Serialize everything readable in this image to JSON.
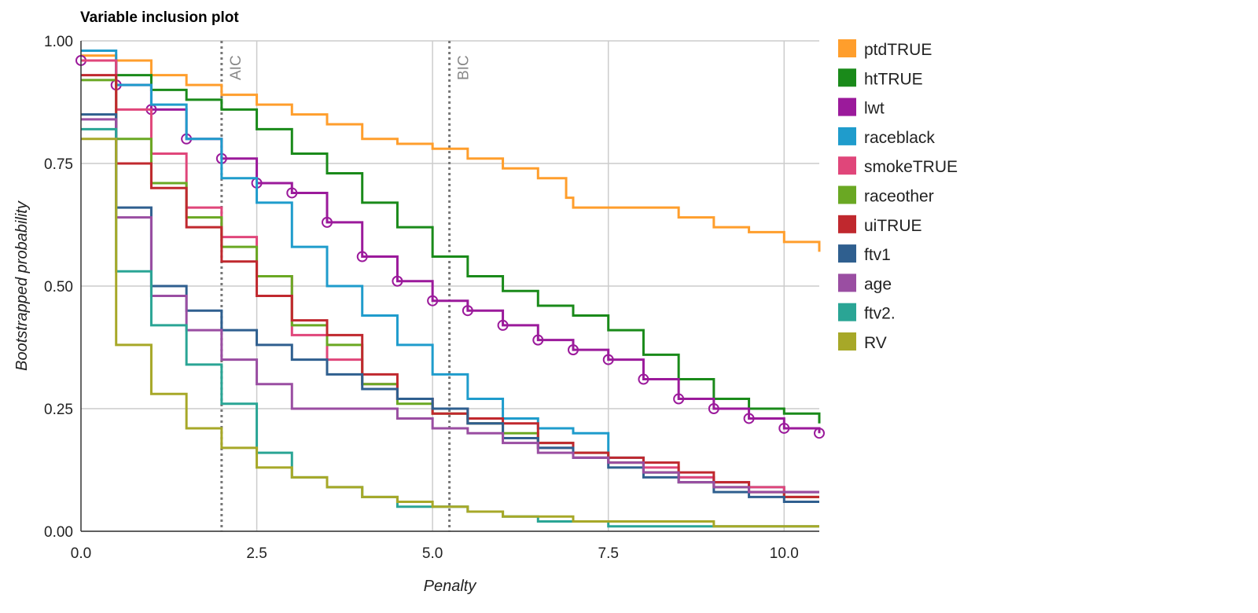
{
  "chart_data": {
    "type": "line",
    "title": "Variable inclusion plot",
    "xlabel": "Penalty",
    "ylabel": "Bootstrapped probability",
    "xlim": [
      0,
      10.5
    ],
    "ylim": [
      0,
      1
    ],
    "xticks": [
      "0.0",
      "2.5",
      "5.0",
      "7.5",
      "10.0"
    ],
    "xtick_values": [
      0,
      2.5,
      5,
      7.5,
      10
    ],
    "yticks": [
      "0.00",
      "0.25",
      "0.50",
      "0.75",
      "1.00"
    ],
    "ytick_values": [
      0,
      0.25,
      0.5,
      0.75,
      1
    ],
    "grid": true,
    "legend_position": "right",
    "step": true,
    "vlines": [
      {
        "label": "AIC",
        "x": 2
      },
      {
        "label": "BIC",
        "x": 5.24
      }
    ],
    "series": [
      {
        "name": "ptdTRUE",
        "color": "#ff9e2c",
        "x": [
          0,
          0.5,
          1.0,
          1.5,
          2.0,
          2.5,
          3.0,
          3.5,
          4.0,
          4.5,
          5.0,
          5.5,
          6.0,
          6.5,
          6.9,
          7.0,
          7.5,
          8.0,
          8.5,
          9.0,
          9.5,
          10.0,
          10.5
        ],
        "y": [
          0.97,
          0.96,
          0.93,
          0.91,
          0.89,
          0.87,
          0.85,
          0.83,
          0.8,
          0.79,
          0.78,
          0.76,
          0.74,
          0.72,
          0.68,
          0.66,
          0.66,
          0.66,
          0.64,
          0.62,
          0.61,
          0.59,
          0.57
        ]
      },
      {
        "name": "htTRUE",
        "color": "#1a8a1a",
        "x": [
          0,
          0.5,
          1.0,
          1.5,
          2.0,
          2.5,
          3.0,
          3.5,
          4.0,
          4.5,
          5.0,
          5.5,
          6.0,
          6.5,
          7.0,
          7.5,
          8.0,
          8.5,
          9.0,
          9.5,
          10.0,
          10.5
        ],
        "y": [
          0.96,
          0.93,
          0.9,
          0.88,
          0.86,
          0.82,
          0.77,
          0.73,
          0.67,
          0.62,
          0.56,
          0.52,
          0.49,
          0.46,
          0.44,
          0.41,
          0.36,
          0.31,
          0.27,
          0.25,
          0.24,
          0.22
        ]
      },
      {
        "name": "lwt",
        "color": "#9b1a9b",
        "marker": "circle",
        "x": [
          0,
          0.5,
          1.0,
          1.5,
          2.0,
          2.5,
          3.0,
          3.5,
          4.0,
          4.5,
          5.0,
          5.5,
          6.0,
          6.5,
          7.0,
          7.5,
          8.0,
          8.5,
          9.0,
          9.5,
          10.0,
          10.5
        ],
        "y": [
          0.96,
          0.91,
          0.86,
          0.8,
          0.76,
          0.71,
          0.69,
          0.63,
          0.56,
          0.51,
          0.47,
          0.45,
          0.42,
          0.39,
          0.37,
          0.35,
          0.31,
          0.27,
          0.25,
          0.23,
          0.21,
          0.2
        ]
      },
      {
        "name": "raceblack",
        "color": "#1f9ccc",
        "x": [
          0,
          0.5,
          1.0,
          1.5,
          2.0,
          2.5,
          3.0,
          3.5,
          4.0,
          4.5,
          5.0,
          5.5,
          6.0,
          6.5,
          7.0,
          7.5,
          8.0,
          8.5,
          9.0,
          9.5,
          10.0,
          10.5
        ],
        "y": [
          0.98,
          0.91,
          0.87,
          0.8,
          0.72,
          0.67,
          0.58,
          0.5,
          0.44,
          0.38,
          0.32,
          0.27,
          0.23,
          0.21,
          0.2,
          0.15,
          0.12,
          0.11,
          0.1,
          0.09,
          0.08,
          0.08
        ]
      },
      {
        "name": "smokeTRUE",
        "color": "#e0467a",
        "x": [
          0,
          0.5,
          1.0,
          1.5,
          2.0,
          2.5,
          3.0,
          3.5,
          4.0,
          4.5,
          5.0,
          5.5,
          6.0,
          6.5,
          7.0,
          7.5,
          8.0,
          8.5,
          9.0,
          9.5,
          10.0,
          10.5
        ],
        "y": [
          0.96,
          0.86,
          0.77,
          0.66,
          0.6,
          0.52,
          0.4,
          0.35,
          0.3,
          0.27,
          0.25,
          0.22,
          0.19,
          0.17,
          0.15,
          0.14,
          0.13,
          0.11,
          0.1,
          0.09,
          0.08,
          0.08
        ]
      },
      {
        "name": "raceother",
        "color": "#6aa823",
        "x": [
          0,
          0.5,
          1.0,
          1.5,
          2.0,
          2.5,
          3.0,
          3.5,
          4.0,
          4.5,
          5.0,
          5.5,
          6.0,
          6.5,
          7.0,
          7.5,
          8.0,
          8.5,
          9.0,
          9.5,
          10.0,
          10.5
        ],
        "y": [
          0.92,
          0.8,
          0.71,
          0.64,
          0.58,
          0.52,
          0.42,
          0.38,
          0.3,
          0.26,
          0.24,
          0.22,
          0.2,
          0.18,
          0.16,
          0.14,
          0.12,
          0.1,
          0.09,
          0.08,
          0.07,
          0.07
        ]
      },
      {
        "name": "uiTRUE",
        "color": "#c0282e",
        "x": [
          0,
          0.5,
          1.0,
          1.5,
          2.0,
          2.5,
          3.0,
          3.5,
          4.0,
          4.5,
          5.0,
          5.5,
          6.0,
          6.5,
          7.0,
          7.5,
          8.0,
          8.5,
          9.0,
          9.5,
          10.0,
          10.5
        ],
        "y": [
          0.93,
          0.75,
          0.7,
          0.62,
          0.55,
          0.48,
          0.43,
          0.4,
          0.32,
          0.27,
          0.24,
          0.23,
          0.22,
          0.18,
          0.16,
          0.15,
          0.14,
          0.12,
          0.1,
          0.08,
          0.07,
          0.07
        ]
      },
      {
        "name": "ftv1",
        "color": "#2f5f8f",
        "x": [
          0,
          0.5,
          1.0,
          1.5,
          2.0,
          2.5,
          3.0,
          3.5,
          4.0,
          4.5,
          5.0,
          5.5,
          6.0,
          6.5,
          7.0,
          7.5,
          8.0,
          8.5,
          9.0,
          9.5,
          10.0,
          10.5
        ],
        "y": [
          0.85,
          0.66,
          0.5,
          0.45,
          0.41,
          0.38,
          0.35,
          0.32,
          0.29,
          0.27,
          0.25,
          0.22,
          0.19,
          0.17,
          0.15,
          0.13,
          0.11,
          0.1,
          0.08,
          0.07,
          0.06,
          0.06
        ]
      },
      {
        "name": "age",
        "color": "#9a4ea2",
        "x": [
          0,
          0.5,
          1.0,
          1.5,
          2.0,
          2.5,
          3.0,
          3.5,
          4.0,
          4.5,
          5.0,
          5.5,
          6.0,
          6.5,
          7.0,
          7.5,
          8.0,
          8.5,
          9.0,
          9.5,
          10.0,
          10.5
        ],
        "y": [
          0.84,
          0.64,
          0.48,
          0.41,
          0.35,
          0.3,
          0.25,
          0.25,
          0.25,
          0.23,
          0.21,
          0.2,
          0.18,
          0.16,
          0.15,
          0.14,
          0.12,
          0.1,
          0.09,
          0.08,
          0.08,
          0.08
        ]
      },
      {
        "name": "ftv2.",
        "color": "#2aa595",
        "x": [
          0,
          0.5,
          1.0,
          1.5,
          2.0,
          2.5,
          3.0,
          3.5,
          4.0,
          4.5,
          5.0,
          5.5,
          6.0,
          6.5,
          7.0,
          7.5,
          8.0,
          8.5,
          9.0,
          9.5,
          10.0,
          10.5
        ],
        "y": [
          0.82,
          0.53,
          0.42,
          0.34,
          0.26,
          0.16,
          0.11,
          0.09,
          0.07,
          0.05,
          0.05,
          0.04,
          0.03,
          0.02,
          0.02,
          0.01,
          0.01,
          0.01,
          0.01,
          0.01,
          0.01,
          0.01
        ]
      },
      {
        "name": "RV",
        "color": "#a7a828",
        "x": [
          0,
          0.5,
          1.0,
          1.5,
          2.0,
          2.5,
          3.0,
          3.5,
          4.0,
          4.5,
          5.0,
          5.5,
          6.0,
          6.5,
          7.0,
          7.5,
          8.0,
          8.5,
          9.0,
          9.5,
          10.0,
          10.5
        ],
        "y": [
          0.8,
          0.38,
          0.28,
          0.21,
          0.17,
          0.13,
          0.11,
          0.09,
          0.07,
          0.06,
          0.05,
          0.04,
          0.03,
          0.03,
          0.02,
          0.02,
          0.02,
          0.02,
          0.01,
          0.01,
          0.01,
          0.01
        ]
      }
    ]
  }
}
